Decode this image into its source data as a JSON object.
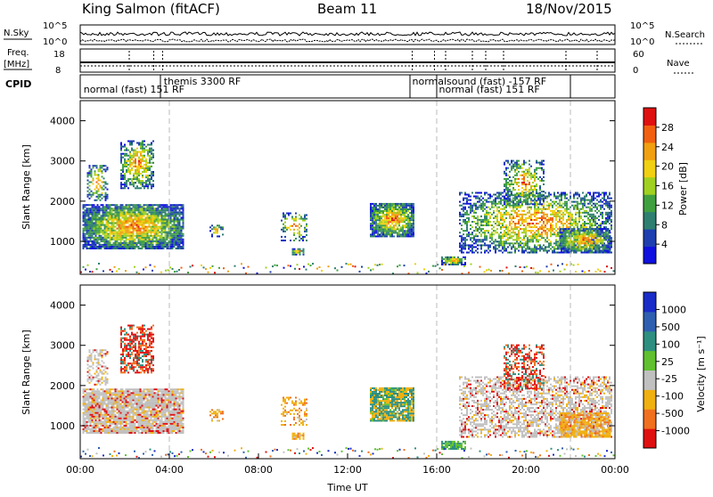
{
  "header": {
    "station": "King Salmon (fitACF)",
    "beam": "Beam 11",
    "date": "18/Nov/2015"
  },
  "strips": {
    "nsky_label": "N.Sky",
    "nsky_ticks": [
      "10^5",
      "10^0"
    ],
    "nsearch_label": "N.Search",
    "nsearch_ticks": [
      "10^5",
      "10^0"
    ],
    "freq_label_1": "Freq.",
    "freq_label_2": "[MHz]",
    "freq_ticks": [
      "18",
      "8"
    ],
    "nave_label": "Nave",
    "nave_ticks": [
      "60",
      "0"
    ],
    "cpid_label": "CPID"
  },
  "modes": [
    {
      "text": "normal (fast)  151 RF",
      "t": 0.15
    },
    {
      "text": "themis 3300 RF",
      "t": 3.75
    },
    {
      "text": "normalsound (fast)  -157 RF",
      "t": 14.9
    },
    {
      "text": "normal (fast)  151 RF",
      "t": 16.1
    }
  ],
  "chart_data": [
    {
      "type": "heatmap",
      "name": "power",
      "ylabel": "Slant Range [km]",
      "xlabel": "",
      "xlim": [
        0,
        24
      ],
      "ylim": [
        180,
        4500
      ],
      "yticks": [
        "1000",
        "2000",
        "3000",
        "4000"
      ],
      "colorbar_label": "Power [dB]",
      "colorbar_ticks": [
        "4",
        "8",
        "12",
        "16",
        "20",
        "24",
        "28"
      ],
      "colorbar_range": [
        0,
        30
      ],
      "colors": [
        "#1010e0",
        "#1e3fb0",
        "#2e7f70",
        "#40a040",
        "#a0d020",
        "#f0d010",
        "#f0a010",
        "#f06010",
        "#e01010"
      ]
    },
    {
      "type": "heatmap",
      "name": "velocity",
      "ylabel": "Slant Range [km]",
      "xlabel": "Time UT",
      "xlim": [
        0,
        24
      ],
      "ylim": [
        180,
        4500
      ],
      "yticks": [
        "1000",
        "2000",
        "3000",
        "4000"
      ],
      "xticks": [
        "00:00",
        "04:00",
        "08:00",
        "12:00",
        "16:00",
        "20:00",
        "00:00"
      ],
      "colorbar_label": "Velocity [m s⁻¹]",
      "colorbar_ticks": [
        "1000",
        "500",
        "100",
        "25",
        "-25",
        "-100",
        "-500",
        "-1000"
      ],
      "colors": [
        "#1a2cc8",
        "#2f5fb0",
        "#2e8f80",
        "#60c030",
        "#c0c0c0",
        "#f0b010",
        "#f07020",
        "#e01010"
      ]
    }
  ],
  "dashed_times": [
    4.0,
    16.0,
    22.0
  ],
  "blobs": [
    {
      "t0": 0.1,
      "t1": 4.6,
      "r0": 800,
      "r1": 1900,
      "d": 0.9,
      "vel": "mix_grey"
    },
    {
      "t0": 0.3,
      "t1": 1.2,
      "r0": 2000,
      "r1": 2900,
      "d": 0.5,
      "vel": "mix_grey"
    },
    {
      "t0": 1.8,
      "t1": 3.3,
      "r0": 2300,
      "r1": 3500,
      "d": 0.6,
      "vel": "red"
    },
    {
      "t0": 5.8,
      "t1": 6.4,
      "r0": 1100,
      "r1": 1400,
      "d": 0.4,
      "vel": "orange"
    },
    {
      "t0": 9.0,
      "t1": 10.2,
      "r0": 1000,
      "r1": 1700,
      "d": 0.35,
      "vel": "orange"
    },
    {
      "t0": 9.5,
      "t1": 10.0,
      "r0": 650,
      "r1": 800,
      "d": 0.7,
      "vel": "orange"
    },
    {
      "t0": 13.0,
      "t1": 15.0,
      "r0": 1100,
      "r1": 1950,
      "d": 0.9,
      "vel": "orange_green"
    },
    {
      "t0": 16.2,
      "t1": 17.3,
      "r0": 400,
      "r1": 600,
      "d": 0.8,
      "vel": "green"
    },
    {
      "t0": 17.0,
      "t1": 23.8,
      "r0": 700,
      "r1": 2200,
      "d": 0.55,
      "vel": "mix_grey"
    },
    {
      "t0": 19.0,
      "t1": 20.8,
      "r0": 1900,
      "r1": 3000,
      "d": 0.5,
      "vel": "red"
    },
    {
      "t0": 21.5,
      "t1": 23.8,
      "r0": 700,
      "r1": 1300,
      "d": 0.8,
      "vel": "orange"
    }
  ]
}
